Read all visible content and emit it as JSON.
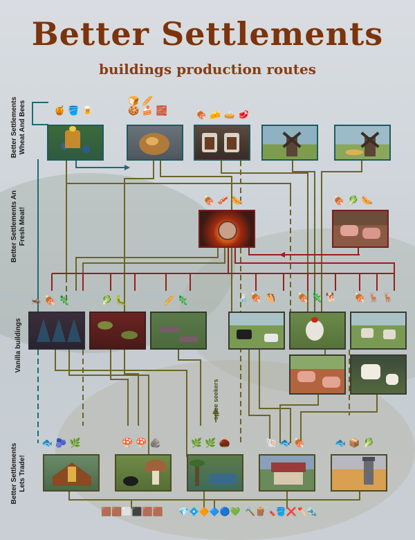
{
  "title": "Better Settlements",
  "subtitle": "buildings production routes",
  "sections": {
    "wheat_and_bees": "Better Settlements Wheat And Bees",
    "fresh_meat": "Better Settlements An Fresh Meat!",
    "vanilla": "Vanilla buildings",
    "lets_trade": "Better Settlements Lets Trade!"
  },
  "annotations": {
    "spice_seekers": "spice seekers"
  },
  "colors": {
    "title": "#7a3410",
    "route_olive": "#6b6426",
    "route_red": "#9a1d1d",
    "route_teal": "#1e6b73"
  }
}
